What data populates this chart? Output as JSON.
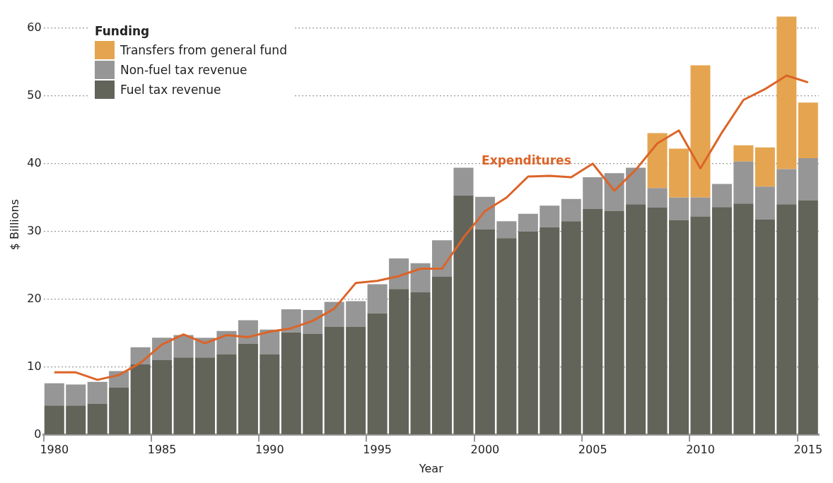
{
  "chart_data": {
    "type": "bar",
    "stacked": true,
    "xlabel": "Year",
    "ylabel": "$ Billions",
    "legend_title": "Funding",
    "legend": "top left",
    "grid": "y",
    "ylim": [
      0,
      62
    ],
    "yticks": [
      0,
      10,
      20,
      30,
      40,
      50,
      60
    ],
    "categories": [
      "1980",
      null,
      null,
      null,
      null,
      "1985",
      null,
      null,
      null,
      null,
      "1990",
      null,
      null,
      null,
      null,
      "1995",
      null,
      null,
      null,
      null,
      "2000",
      null,
      null,
      null,
      null,
      "2005",
      null,
      null,
      null,
      null,
      "2010",
      null,
      null,
      null,
      null,
      "2015"
    ],
    "series": [
      {
        "name": "Fuel tax revenue",
        "color": "#62645a",
        "values": [
          4.3,
          4.3,
          4.6,
          7.0,
          10.4,
          11.0,
          11.4,
          11.4,
          11.9,
          13.4,
          11.9,
          15.1,
          14.9,
          15.9,
          15.9,
          17.9,
          21.5,
          21.0,
          23.3,
          35.3,
          30.3,
          29.0,
          30.0,
          30.6,
          31.5,
          33.3,
          33.0,
          34.0,
          33.5,
          31.7,
          32.2,
          33.6,
          34.1,
          31.8,
          34.0,
          34.6
        ]
      },
      {
        "name": "Non-fuel tax revenue",
        "color": "#969696",
        "values": [
          3.3,
          3.1,
          3.2,
          2.4,
          2.5,
          3.3,
          3.3,
          2.9,
          3.4,
          3.5,
          3.6,
          3.4,
          3.5,
          3.7,
          3.8,
          4.3,
          4.5,
          4.3,
          5.4,
          4.1,
          4.8,
          2.5,
          2.6,
          3.2,
          3.3,
          4.7,
          5.6,
          5.4,
          2.9,
          3.3,
          2.8,
          3.4,
          6.2,
          4.8,
          5.2,
          6.2
        ]
      },
      {
        "name": "Transfers from general fund",
        "color": "#e5a550",
        "values": [
          null,
          null,
          null,
          null,
          null,
          null,
          null,
          null,
          null,
          null,
          null,
          null,
          null,
          null,
          null,
          null,
          null,
          null,
          null,
          null,
          null,
          null,
          null,
          null,
          null,
          null,
          null,
          null,
          8.1,
          7.2,
          19.5,
          null,
          2.4,
          5.8,
          22.5,
          8.2
        ]
      },
      {
        "name": "Expenditures",
        "type": "line",
        "color": "#dc6428",
        "values": [
          9.2,
          9.2,
          8.1,
          8.8,
          10.6,
          13.3,
          14.8,
          13.5,
          14.7,
          14.4,
          15.2,
          15.7,
          16.8,
          18.6,
          22.4,
          22.7,
          23.4,
          24.5,
          24.5,
          29.1,
          33.0,
          35.0,
          38.1,
          38.2,
          38.0,
          40.0,
          36.0,
          39.1,
          43.0,
          44.9,
          39.3,
          44.6,
          49.4,
          51.0,
          53.0,
          52.0
        ]
      }
    ]
  }
}
